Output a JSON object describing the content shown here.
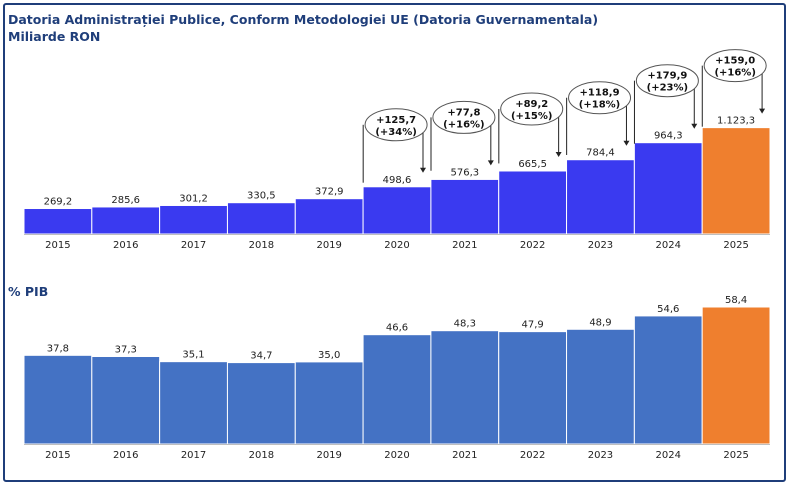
{
  "title": "Datoria Administrației Publice, Conform Metodologiei UE (Datoria Guvernamentala)",
  "subtitle": "Miliarde RON",
  "chart_data": [
    {
      "type": "bar",
      "title": "Datoria Administrației Publice, Conform Metodologiei UE (Datoria Guvernamentala)",
      "ylabel": "Miliarde RON",
      "categories": [
        "2015",
        "2016",
        "2017",
        "2018",
        "2019",
        "2020",
        "2021",
        "2022",
        "2023",
        "2024",
        "2025"
      ],
      "values": [
        269.2,
        285.6,
        301.2,
        330.5,
        372.9,
        498.6,
        576.3,
        665.5,
        784.4,
        964.3,
        1123.3
      ],
      "value_labels": [
        "269,2",
        "285,6",
        "301,2",
        "330,5",
        "372,9",
        "498,6",
        "576,3",
        "665,5",
        "784,4",
        "964,3",
        "1.123,3"
      ],
      "ylim": [
        0,
        1130
      ],
      "colors": {
        "main": "#3a3af0",
        "highlight": "#ef7f2e"
      },
      "annotations": [
        {
          "from": "2019",
          "to": "2020",
          "line1": "+125,7",
          "line2": "(+34%)"
        },
        {
          "from": "2020",
          "to": "2021",
          "line1": "+77,8",
          "line2": "(+16%)"
        },
        {
          "from": "2021",
          "to": "2022",
          "line1": "+89,2",
          "line2": "(+15%)"
        },
        {
          "from": "2022",
          "to": "2023",
          "line1": "+118,9",
          "line2": "(+18%)"
        },
        {
          "from": "2023",
          "to": "2024",
          "line1": "+179,9",
          "line2": "(+23%)"
        },
        {
          "from": "2024",
          "to": "2025",
          "line1": "+159,0",
          "line2": "(+16%)"
        }
      ]
    },
    {
      "type": "bar",
      "title": "% PIB",
      "categories": [
        "2015",
        "2016",
        "2017",
        "2018",
        "2019",
        "2020",
        "2021",
        "2022",
        "2023",
        "2024",
        "2025"
      ],
      "values": [
        37.8,
        37.3,
        35.1,
        34.7,
        35.0,
        46.6,
        48.3,
        47.9,
        48.9,
        54.6,
        58.4
      ],
      "value_labels": [
        "37,8",
        "37,3",
        "35,1",
        "34,7",
        "35,0",
        "46,6",
        "48,3",
        "47,9",
        "48,9",
        "54,6",
        "58,4"
      ],
      "ylim": [
        0,
        58.4
      ],
      "colors": {
        "main": "#4472c4",
        "highlight": "#ef7f2e"
      }
    }
  ]
}
